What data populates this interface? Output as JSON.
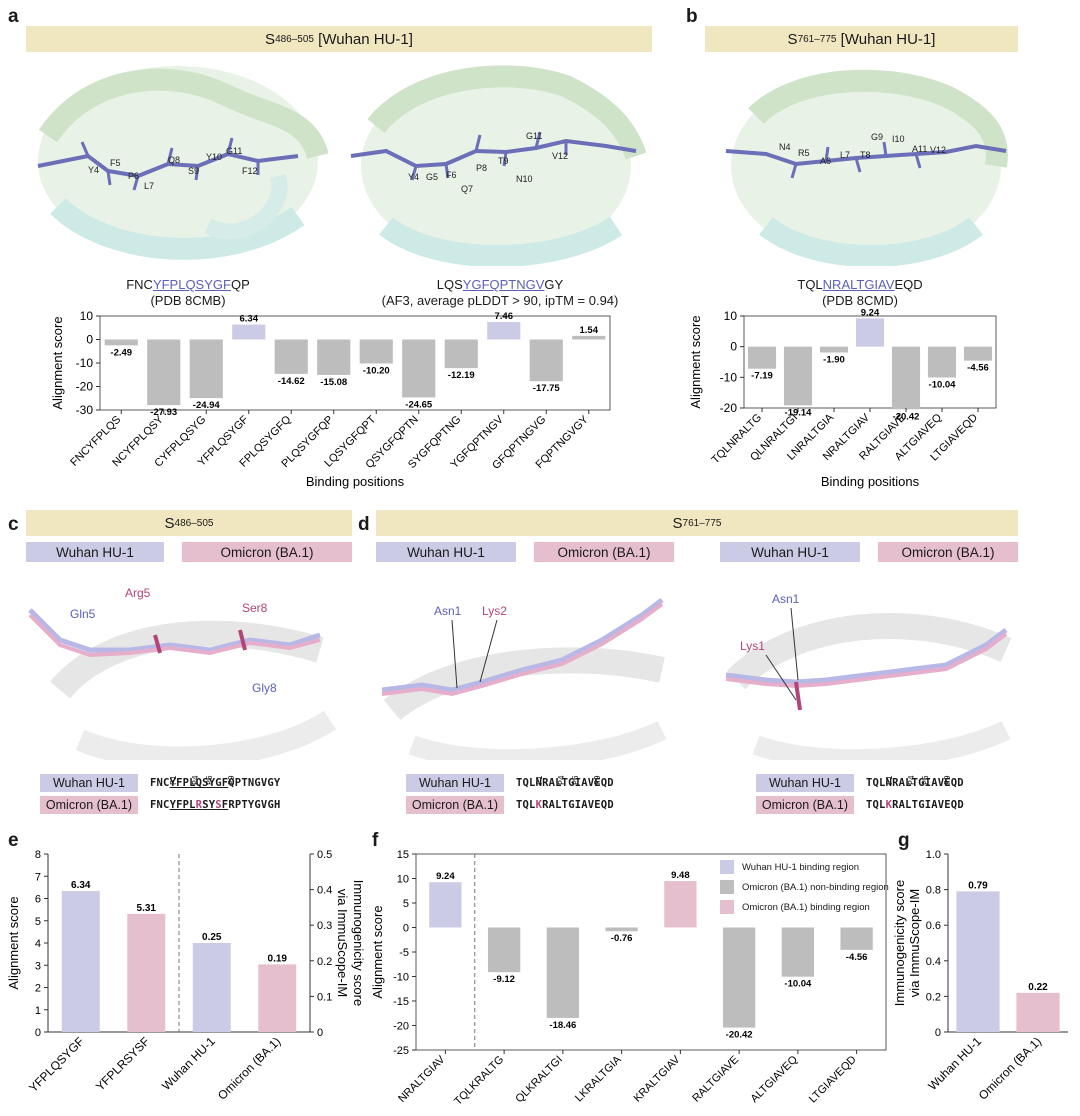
{
  "panels": {
    "a": {
      "label": "a",
      "banner_main": "S",
      "banner_sub": "486–505",
      "banner_rest": " [Wuhan HU-1]",
      "cap1_pre": "FNC",
      "cap1_core": "YFPLQSYGF",
      "cap1_post": "QP",
      "cap1_line2": "(PDB 8CMB)",
      "cap2_pre": "LQS",
      "cap2_core": "YGFQPTNGV",
      "cap2_post": "GY",
      "cap2_line2": "(AF3, average pLDDT > 90, ipTM = 0.94)",
      "residues1": [
        "Y4",
        "F5",
        "P6",
        "L7",
        "Q8",
        "S9",
        "Y10",
        "G11",
        "F12"
      ],
      "residues2": [
        "Y4",
        "G5",
        "F6",
        "Q7",
        "P8",
        "T9",
        "N10",
        "G11",
        "V12"
      ]
    },
    "b": {
      "label": "b",
      "banner_main": "S",
      "banner_sub": "761–775",
      "banner_rest": " [Wuhan HU-1]",
      "cap_pre": "TQL",
      "cap_core": "NRALTGIAV",
      "cap_post": "EQD",
      "cap_line2": "(PDB 8CMD)",
      "residues": [
        "N4",
        "R5",
        "A6",
        "L7",
        "G9",
        "T8",
        "I10",
        "A11",
        "V12"
      ]
    },
    "c": {
      "label": "c",
      "banner_main": "S",
      "banner_sub": "486–505",
      "tag_w": "Wuhan HU-1",
      "tag_o": "Omicron (BA.1)",
      "res_labels": [
        "Gln5",
        "Arg5",
        "Ser8",
        "Gly8"
      ],
      "seq_w_pre": "FNC",
      "seq_w_core": "YFPLQSYGF",
      "seq_w_post": "QPTNGVGY",
      "seq_o_pre": "FNC",
      "seq_o_core1": "YFPLR",
      "seq_o_mut1": "R",
      "seq_o_core2": "SY",
      "seq_o_mut2": "S",
      "seq_o_core3": "F",
      "seq_o_post": "RPTYGVGH",
      "pos": [
        "P1",
        "P4",
        "P6",
        "P9"
      ]
    },
    "d": {
      "label": "d",
      "banner_main": "S",
      "banner_sub": "761–775",
      "tag_w": "Wuhan HU-1",
      "tag_o": "Omicron (BA.1)",
      "left_res": [
        "Asn1",
        "Lys2"
      ],
      "right_res": [
        "Asn1",
        "Lys1"
      ],
      "seq_w": "TQLNRALTGIAVEQD",
      "seq_o_pre": "TQL",
      "seq_o_mut": "K",
      "seq_o_rest": "RALTGIAVEQD",
      "pos": [
        "P1",
        "P4",
        "P6",
        "P9"
      ]
    }
  },
  "chart_data": [
    {
      "id": "a",
      "type": "bar",
      "ylabel": "Alignment score",
      "xlabel": "Binding positions",
      "ylim": [
        -30,
        10
      ],
      "yticks": [
        10,
        0,
        -10,
        -20,
        -30
      ],
      "categories": [
        "FNCYFPLQS",
        "NCYFPLQSY",
        "CYFPLQSYG",
        "YFPLQSYGF",
        "FPLQSYGFQ",
        "PLQSYGFQP",
        "LQSYGFQPT",
        "QSYGFQPTN",
        "SYGFQPTNG",
        "YGFQPTNGV",
        "GFQPTNGVG",
        "FQPTNGVGY"
      ],
      "values": [
        -2.49,
        -27.93,
        -24.94,
        6.34,
        -14.62,
        -15.08,
        -10.2,
        -24.65,
        -12.19,
        7.46,
        -17.75,
        1.54
      ],
      "labels": [
        "-2.49",
        "-27.93",
        "-24.94",
        "6.34",
        "-14.62",
        "-15.08",
        "-10.20",
        "-24.65",
        "-12.19",
        "7.46",
        "-17.75",
        "1.54"
      ],
      "highlight": [
        3,
        9
      ]
    },
    {
      "id": "b",
      "type": "bar",
      "ylabel": "Alignment score",
      "xlabel": "Binding positions",
      "ylim": [
        -20,
        10
      ],
      "yticks": [
        10,
        0,
        -10,
        -20
      ],
      "categories": [
        "TQLNRALTG",
        "QLNRALTGI",
        "LNRALTGIA",
        "NRALTGIAV",
        "RALTGIAVE",
        "ALTGIAVEQ",
        "LTGIAVEQD"
      ],
      "values": [
        -7.19,
        -19.14,
        -1.9,
        9.24,
        -20.42,
        -10.04,
        -4.56
      ],
      "labels": [
        "-7.19",
        "-19.14",
        "-1.90",
        "9.24",
        "-20.42",
        "-10.04",
        "-4.56"
      ],
      "highlight": [
        3
      ]
    },
    {
      "id": "e",
      "type": "bar",
      "ylabel": "Alignment score",
      "ylabel2": "Immunogenicity score via ImmuScope-IM",
      "ylim": [
        0,
        8
      ],
      "ylim2": [
        0,
        0.5
      ],
      "yticks": [
        0,
        1,
        2,
        3,
        4,
        5,
        6,
        7,
        8
      ],
      "yticks2": [
        "0",
        "0.1",
        "0.2",
        "0.3",
        "0.4",
        "0.5"
      ],
      "categories": [
        "YFPLQSYGF",
        "YFPLRSYSF",
        "Wuhan HU-1",
        "Omicron (BA.1)"
      ],
      "values": [
        6.34,
        5.31,
        0.25,
        0.19
      ],
      "labels": [
        "6.34",
        "5.31",
        "0.25",
        "0.19"
      ],
      "axis": [
        "left",
        "left",
        "right",
        "right"
      ],
      "colors": [
        "#cbcbe6",
        "#e6bfcf",
        "#cbcbe6",
        "#e6bfcf"
      ]
    },
    {
      "id": "f",
      "type": "bar",
      "ylabel": "Alignment score",
      "ylim": [
        -25,
        15
      ],
      "yticks": [
        15,
        10,
        5,
        0,
        -5,
        -10,
        -15,
        -20,
        -25
      ],
      "categories": [
        "NRALTGIAV",
        "TQLKRALTG",
        "QLKRALTGI",
        "LKRALTGIA",
        "KRALTGIAV",
        "RALTGIAVE",
        "ALTGIAVEQ",
        "LTGIAVEQD"
      ],
      "values": [
        9.24,
        -9.12,
        -18.46,
        -0.76,
        9.48,
        -20.42,
        -10.04,
        -4.56
      ],
      "labels": [
        "9.24",
        "-9.12",
        "-18.46",
        "-0.76",
        "9.48",
        "-20.42",
        "-10.04",
        "-4.56"
      ],
      "colors": [
        "#cbcbe6",
        "#bdbdbd",
        "#bdbdbd",
        "#bdbdbd",
        "#e6bfcf",
        "#bdbdbd",
        "#bdbdbd",
        "#bdbdbd"
      ],
      "legend": [
        {
          "name": "Wuhan HU-1 binding region",
          "color": "#cbcbe6"
        },
        {
          "name": "Omicron (BA.1) non-binding region",
          "color": "#bdbdbd"
        },
        {
          "name": "Omicron (BA.1) binding region",
          "color": "#e6bfcf"
        }
      ]
    },
    {
      "id": "g",
      "type": "bar",
      "ylabel": "Immunogenicity score via ImmuScope-IM",
      "ylim": [
        0,
        1
      ],
      "yticks": [
        "0",
        "0.2",
        "0.4",
        "0.6",
        "0.8",
        "1.0"
      ],
      "categories": [
        "Wuhan HU-1",
        "Omicron (BA.1)"
      ],
      "values": [
        0.79,
        0.22
      ],
      "labels": [
        "0.79",
        "0.22"
      ],
      "colors": [
        "#cbcbe6",
        "#e6bfcf"
      ]
    }
  ],
  "panel_labels": {
    "e": "e",
    "f": "f",
    "g": "g"
  },
  "colors": {
    "wuhan": "#cbcbe6",
    "omicron": "#e6bfcf",
    "grey": "#bdbdbd",
    "banner": "#f0e6c0",
    "res_blue": "#5b5fb8",
    "res_pink": "#b0457a"
  }
}
